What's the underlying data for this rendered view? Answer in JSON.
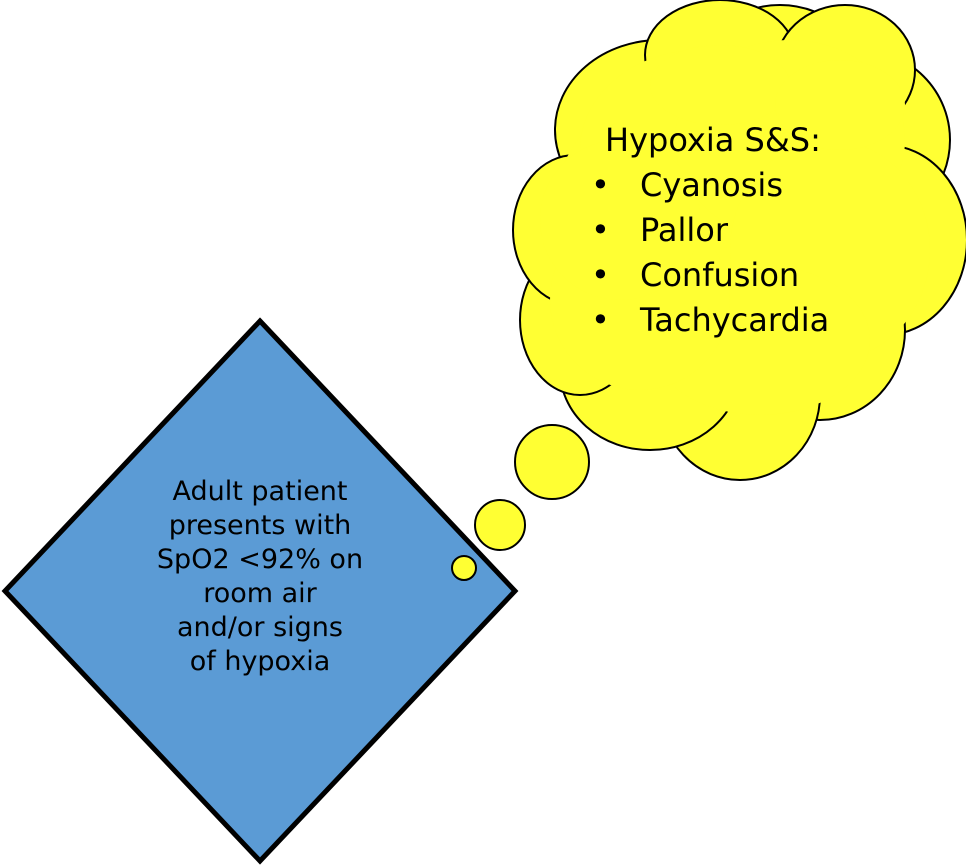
{
  "colors": {
    "diamond_fill": "#5b9bd5",
    "cloud_fill": "#ffff33",
    "outline": "#000000"
  },
  "decision": {
    "lines": [
      "Adult patient",
      "presents with",
      "SpO2 <92% on",
      "room air",
      "and/or signs",
      "of hypoxia"
    ]
  },
  "thought_cloud": {
    "title": "Hypoxia S&S:",
    "bullet": "•",
    "items": [
      "Cyanosis",
      "Pallor",
      "Confusion",
      "Tachycardia"
    ]
  }
}
